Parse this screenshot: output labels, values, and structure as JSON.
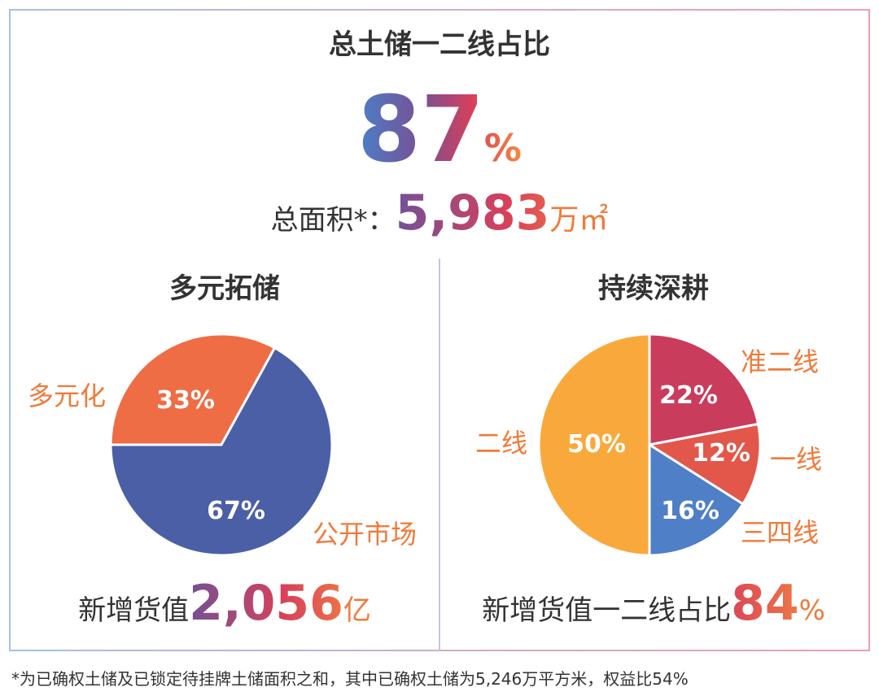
{
  "header": {
    "title": "总土储一二线占比",
    "value": 87,
    "unit": "%",
    "area_label": "总面积*：",
    "area_value": "5,983",
    "area_unit": "万㎡"
  },
  "chart_data": [
    {
      "type": "pie",
      "title": "多元拓储",
      "categories": [
        "多元化",
        "公开市场"
      ],
      "values": [
        33,
        67
      ],
      "value_labels": [
        "33%",
        "67%"
      ],
      "colors": [
        "#ee6d45",
        "#4a5fa6"
      ],
      "footer_label": "新增货值",
      "footer_value": "2,056",
      "footer_unit": "亿"
    },
    {
      "type": "pie",
      "title": "持续深耕",
      "categories": [
        "准二线",
        "一线",
        "三四线",
        "二线"
      ],
      "values": [
        22,
        12,
        16,
        50
      ],
      "value_labels": [
        "22%",
        "12%",
        "16%",
        "50%"
      ],
      "colors": [
        "#c93c5c",
        "#e2574a",
        "#4f7fc6",
        "#f9a93c"
      ],
      "footer_label": "新增货值一二线占比",
      "footer_value": 84,
      "footer_unit": "%"
    }
  ],
  "footnote": "*为已确权土储及已锁定待挂牌土储面积之和，其中已确权土储为5,246万平方米，权益比54%"
}
